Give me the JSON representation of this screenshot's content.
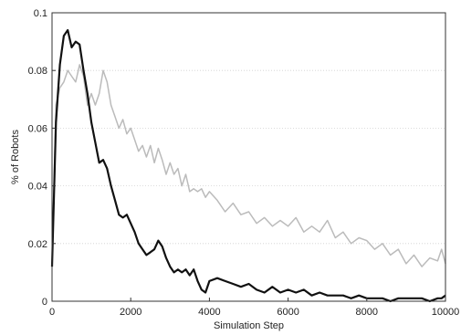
{
  "chart_data": {
    "type": "line",
    "title": "",
    "xlabel": "Simulation Step",
    "ylabel": "% of Robots",
    "xlim": [
      0,
      10000
    ],
    "ylim": [
      0,
      0.1
    ],
    "xticks": [
      0,
      2000,
      4000,
      6000,
      8000,
      10000
    ],
    "yticks": [
      0,
      0.02,
      0.04,
      0.06,
      0.08,
      0.1
    ],
    "xtick_labels": [
      "0",
      "2000",
      "4000",
      "6000",
      "8000",
      "10000"
    ],
    "ytick_labels": [
      "0",
      "0.02",
      "0.04",
      "0.06",
      "0.08",
      "0.1"
    ],
    "grid": "horizontal dotted",
    "legend": "none",
    "series": [
      {
        "color": "#bbbbbb",
        "x": [
          0,
          100,
          200,
          300,
          400,
          500,
          600,
          700,
          800,
          900,
          1000,
          1100,
          1200,
          1300,
          1400,
          1500,
          1600,
          1700,
          1800,
          1900,
          2000,
          2100,
          2200,
          2300,
          2400,
          2500,
          2600,
          2700,
          2800,
          2900,
          3000,
          3100,
          3200,
          3300,
          3400,
          3500,
          3600,
          3700,
          3800,
          3900,
          4000,
          4200,
          4400,
          4600,
          4800,
          5000,
          5200,
          5400,
          5600,
          5800,
          6000,
          6200,
          6400,
          6600,
          6800,
          7000,
          7200,
          7400,
          7600,
          7800,
          8000,
          8200,
          8400,
          8600,
          8800,
          9000,
          9200,
          9400,
          9600,
          9800,
          9900,
          10000
        ],
        "y": [
          0.012,
          0.068,
          0.074,
          0.076,
          0.08,
          0.078,
          0.076,
          0.082,
          0.078,
          0.068,
          0.072,
          0.068,
          0.072,
          0.08,
          0.076,
          0.068,
          0.064,
          0.06,
          0.063,
          0.058,
          0.06,
          0.056,
          0.052,
          0.054,
          0.05,
          0.054,
          0.048,
          0.053,
          0.049,
          0.044,
          0.048,
          0.044,
          0.046,
          0.04,
          0.044,
          0.038,
          0.039,
          0.038,
          0.039,
          0.036,
          0.038,
          0.035,
          0.031,
          0.034,
          0.03,
          0.031,
          0.027,
          0.029,
          0.026,
          0.028,
          0.026,
          0.029,
          0.024,
          0.026,
          0.024,
          0.028,
          0.022,
          0.024,
          0.02,
          0.022,
          0.021,
          0.018,
          0.02,
          0.016,
          0.018,
          0.013,
          0.016,
          0.012,
          0.015,
          0.014,
          0.018,
          0.013
        ]
      },
      {
        "color": "#111111",
        "x": [
          0,
          100,
          200,
          300,
          400,
          500,
          600,
          700,
          800,
          900,
          1000,
          1100,
          1200,
          1300,
          1400,
          1500,
          1600,
          1700,
          1800,
          1900,
          2000,
          2100,
          2200,
          2300,
          2400,
          2500,
          2600,
          2700,
          2800,
          2900,
          3000,
          3100,
          3200,
          3300,
          3400,
          3500,
          3600,
          3700,
          3800,
          3900,
          4000,
          4200,
          4400,
          4600,
          4800,
          5000,
          5200,
          5400,
          5600,
          5800,
          6000,
          6200,
          6400,
          6600,
          6800,
          7000,
          7200,
          7400,
          7600,
          7800,
          8000,
          8200,
          8400,
          8600,
          8800,
          9000,
          9200,
          9400,
          9600,
          9800,
          9900,
          10000
        ],
        "y": [
          0.012,
          0.062,
          0.082,
          0.092,
          0.094,
          0.088,
          0.09,
          0.089,
          0.08,
          0.072,
          0.062,
          0.055,
          0.048,
          0.049,
          0.046,
          0.04,
          0.035,
          0.03,
          0.029,
          0.03,
          0.027,
          0.024,
          0.02,
          0.018,
          0.016,
          0.017,
          0.018,
          0.021,
          0.019,
          0.015,
          0.012,
          0.01,
          0.011,
          0.01,
          0.011,
          0.009,
          0.011,
          0.007,
          0.004,
          0.003,
          0.007,
          0.008,
          0.007,
          0.006,
          0.005,
          0.006,
          0.004,
          0.003,
          0.005,
          0.003,
          0.004,
          0.003,
          0.004,
          0.002,
          0.003,
          0.002,
          0.002,
          0.002,
          0.001,
          0.002,
          0.001,
          0.001,
          0.001,
          0.0,
          0.001,
          0.001,
          0.001,
          0.001,
          0.0,
          0.001,
          0.001,
          0.002
        ]
      }
    ]
  }
}
